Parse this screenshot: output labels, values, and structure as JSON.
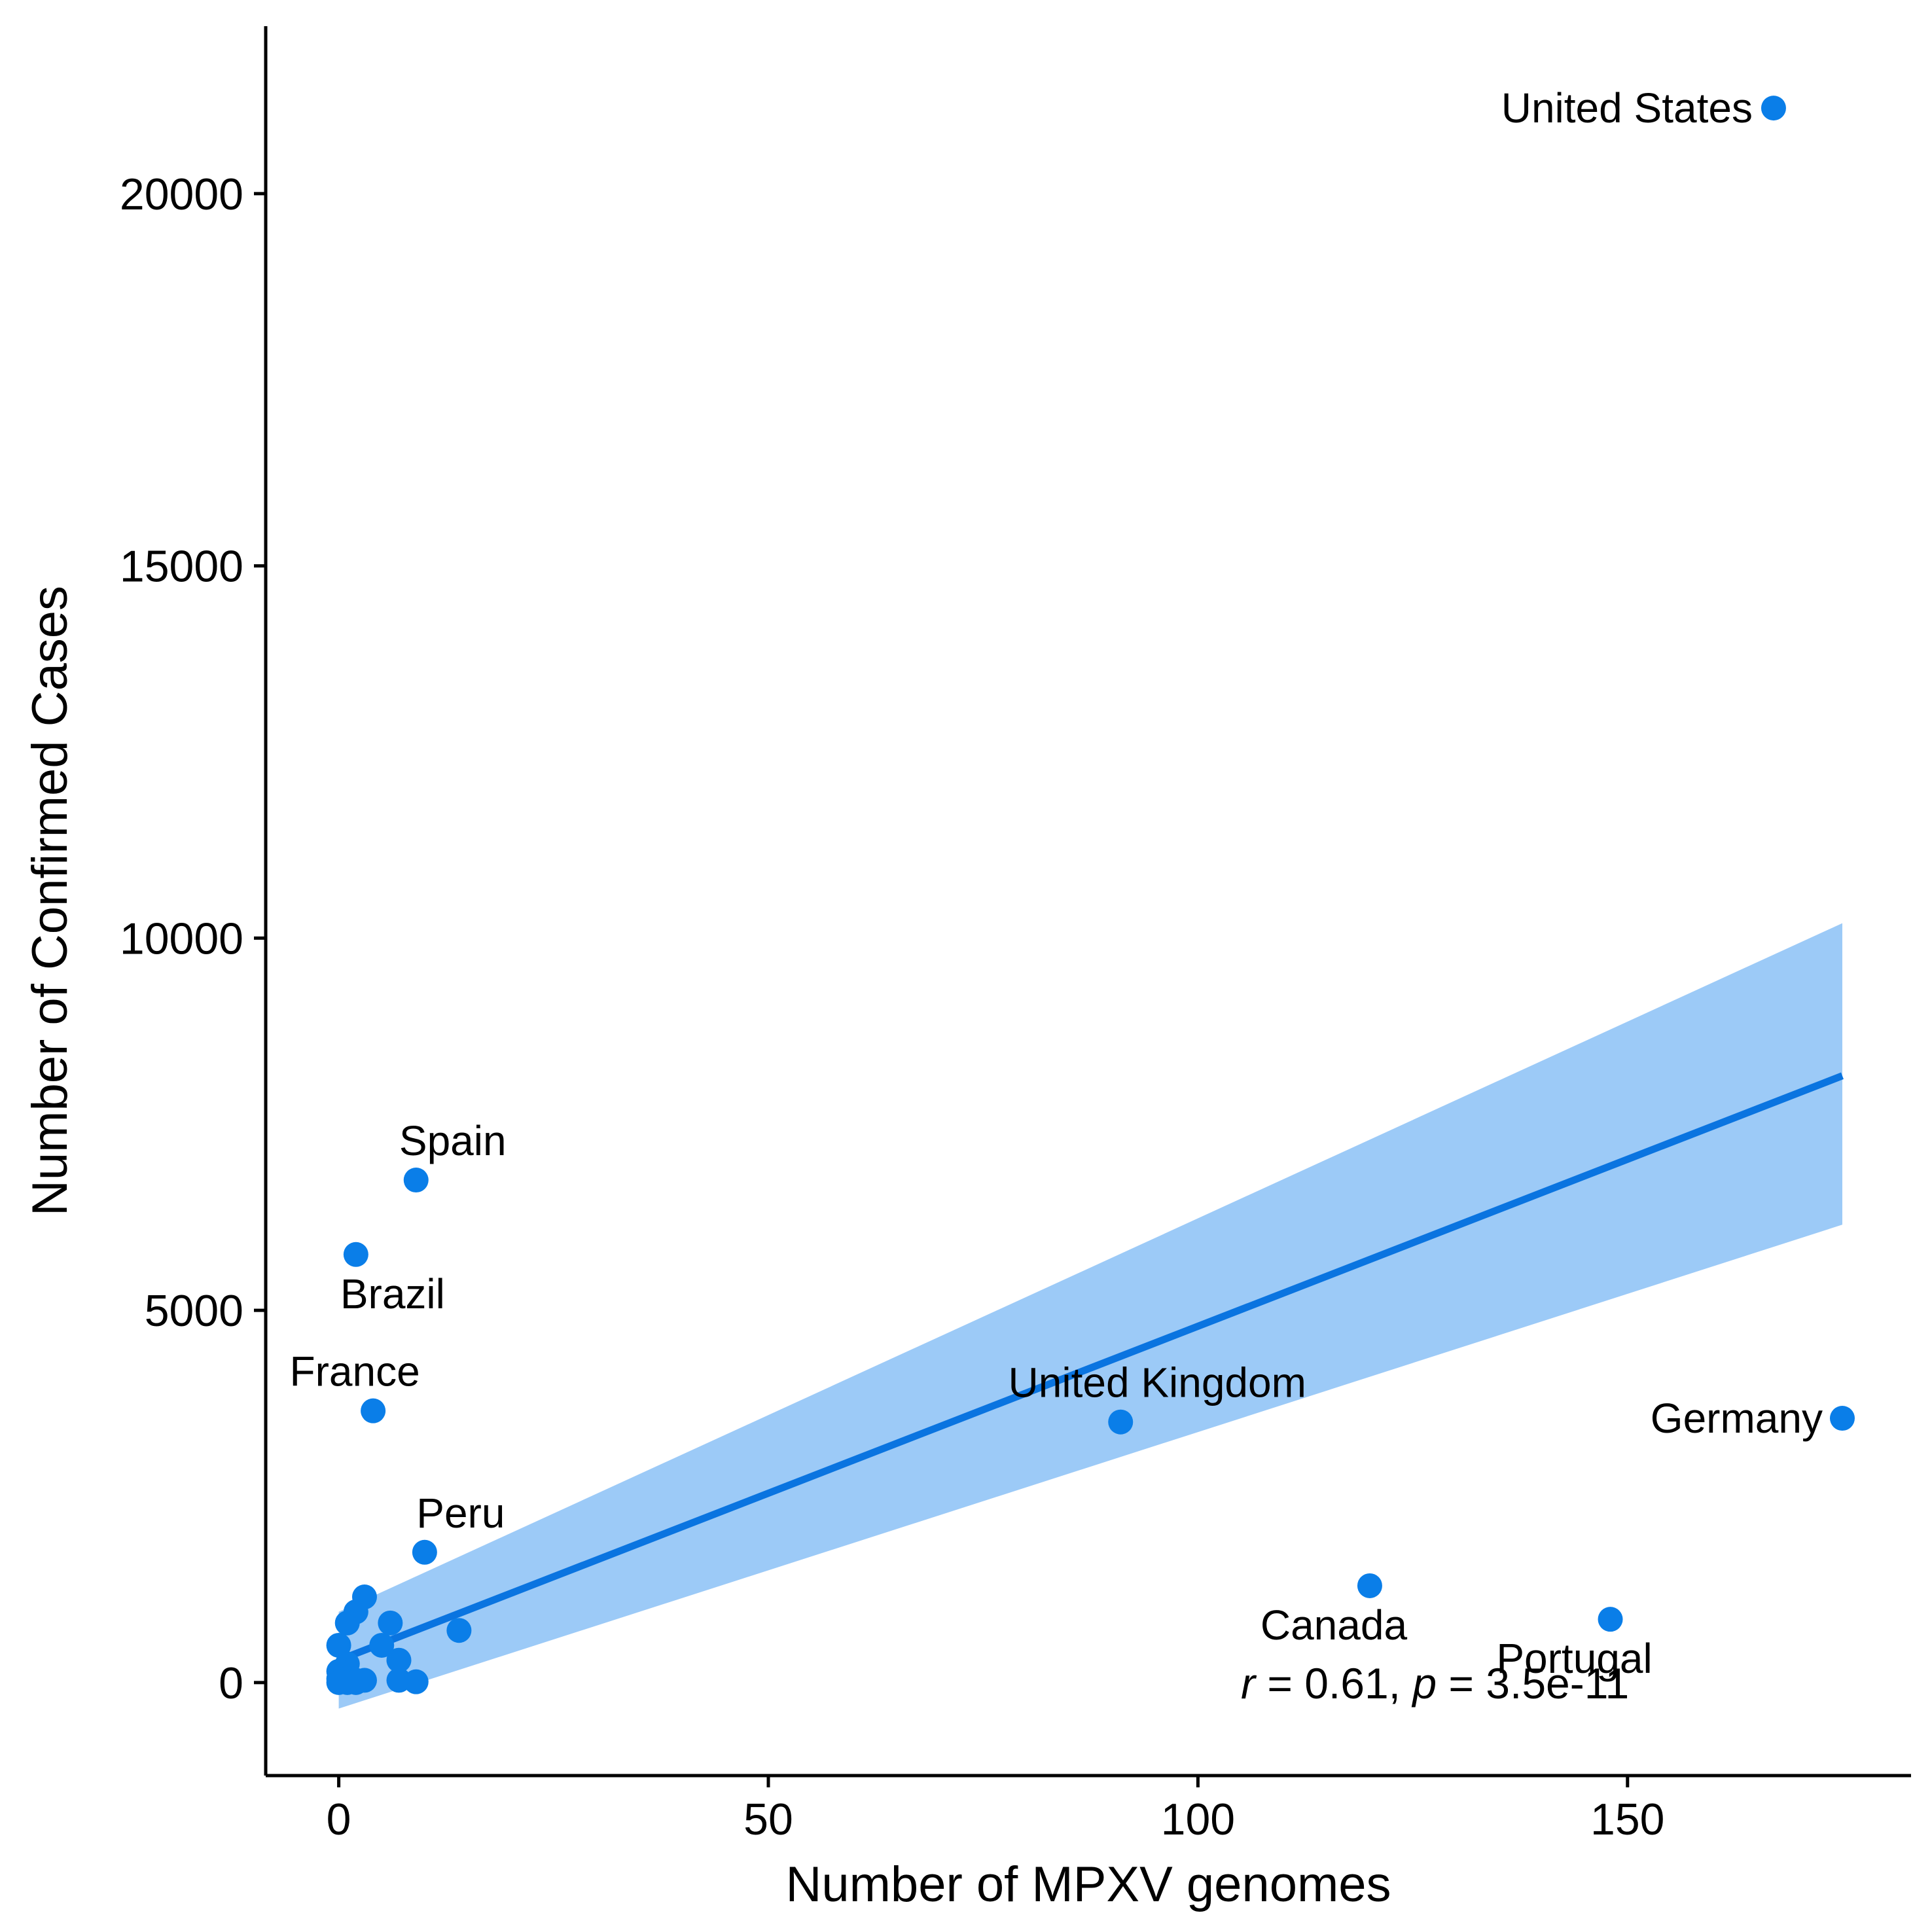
{
  "chart_data": {
    "type": "scatter",
    "xlabel": "Number of MPXV genomes",
    "ylabel": "Number of Confirmed Cases",
    "xlim": [
      -8.5,
      183
    ],
    "ylim": [
      -1250,
      22250
    ],
    "x_ticks": [
      0,
      50,
      100,
      150
    ],
    "y_ticks": [
      0,
      5000,
      10000,
      15000,
      20000
    ],
    "grid": false,
    "legend": "none",
    "point_color": "#0a7ee8",
    "line_color": "#0a74e0",
    "band_color": "#9ccaf7",
    "points": [
      {
        "x": 167,
        "y": 21150,
        "label": "United States"
      },
      {
        "x": 9,
        "y": 6750,
        "label": "Spain"
      },
      {
        "x": 2,
        "y": 5750,
        "label": "Brazil"
      },
      {
        "x": 4,
        "y": 3650,
        "label": "France"
      },
      {
        "x": 10,
        "y": 1750,
        "label": "Peru"
      },
      {
        "x": 91,
        "y": 3500,
        "label": "United Kingdom"
      },
      {
        "x": 175,
        "y": 3550,
        "label": "Germany"
      },
      {
        "x": 120,
        "y": 1300,
        "label": "Canada"
      },
      {
        "x": 148,
        "y": 850,
        "label": "Portugal"
      },
      {
        "x": 3,
        "y": 1150
      },
      {
        "x": 2,
        "y": 950
      },
      {
        "x": 1,
        "y": 800
      },
      {
        "x": 6,
        "y": 800
      },
      {
        "x": 14,
        "y": 700
      },
      {
        "x": 0,
        "y": 500
      },
      {
        "x": 5,
        "y": 500
      },
      {
        "x": 7,
        "y": 300
      },
      {
        "x": 1,
        "y": 250
      },
      {
        "x": 0,
        "y": 150
      },
      {
        "x": 0,
        "y": 50
      },
      {
        "x": 1,
        "y": 50
      },
      {
        "x": 2,
        "y": 30
      },
      {
        "x": 3,
        "y": 30
      },
      {
        "x": 7,
        "y": 30
      },
      {
        "x": 9,
        "y": 10
      },
      {
        "x": 0,
        "y": 0
      },
      {
        "x": 1,
        "y": 0
      },
      {
        "x": 2,
        "y": 0
      }
    ],
    "regression": {
      "x": [
        0,
        175
      ],
      "y": [
        300,
        8150
      ]
    },
    "confidence_band": {
      "x": [
        0,
        175
      ],
      "lower": [
        -350,
        6150
      ],
      "upper": [
        950,
        10200
      ]
    },
    "annotation": {
      "r_symbol": "r",
      "r_text": " = 0.61, ",
      "p_symbol": "p",
      "p_text": " = 3.5e-11",
      "x": 105,
      "y": 0
    }
  }
}
